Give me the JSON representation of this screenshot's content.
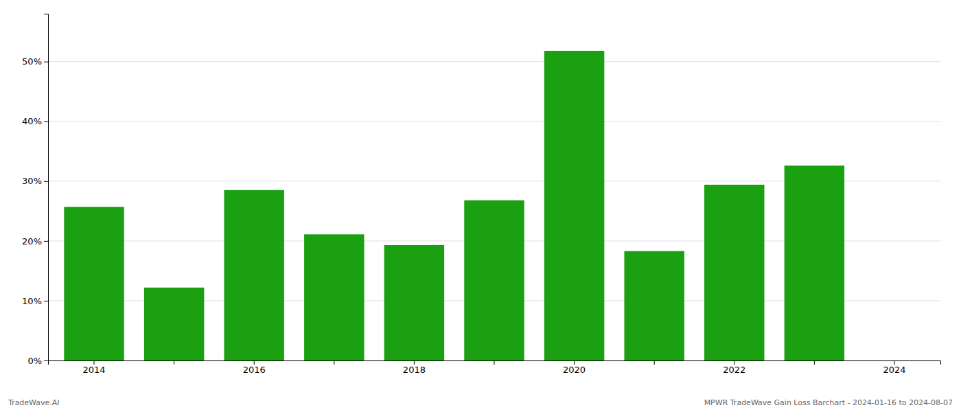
{
  "chart_data": {
    "type": "bar",
    "categories": [
      "2014",
      null,
      "2016",
      null,
      "2018",
      null,
      "2020",
      null,
      "2022",
      null,
      "2024"
    ],
    "values": [
      25.7,
      12.2,
      28.5,
      21.1,
      19.3,
      26.8,
      51.8,
      18.3,
      29.4,
      32.6,
      0.0
    ],
    "colors": [
      "#1aa010",
      "#1aa010",
      "#1aa010",
      "#1aa010",
      "#1aa010",
      "#1aa010",
      "#1aa010",
      "#1aa010",
      "#1aa010",
      "#1aa010",
      "#ffffff"
    ],
    "ylim": [
      0,
      58
    ],
    "yticks": [
      {
        "value": 0,
        "label": "0%"
      },
      {
        "value": 10,
        "label": "10%"
      },
      {
        "value": 20,
        "label": "20%"
      },
      {
        "value": 30,
        "label": "30%"
      },
      {
        "value": 40,
        "label": "40%"
      },
      {
        "value": 50,
        "label": "50%"
      }
    ],
    "grid": true,
    "annotations": [
      "TradeWave.AI",
      "MPWR TradeWave Gain Loss Barchart - 2024-01-16 to 2024-08-07"
    ]
  }
}
